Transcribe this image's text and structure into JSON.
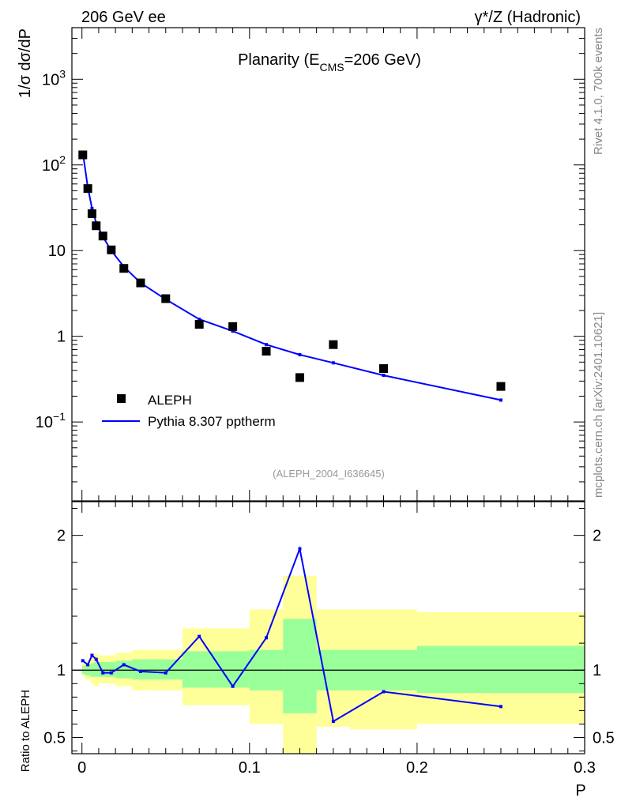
{
  "header": {
    "left": "206 GeV ee",
    "right": "γ*/Z (Hadronic)"
  },
  "side_labels": {
    "rivet": "Rivet 4.1.0,  700k events",
    "mcplots": "mcplots.cern.ch [arXiv:2401.10621]"
  },
  "colors": {
    "data": "#000000",
    "mc": "#0000ff",
    "band_inner": "#99ff99",
    "band_outer": "#ffff99",
    "frame": "#000000"
  },
  "chart_data": [
    {
      "type": "scatter",
      "title": "Planarity (E",
      "title_sub": "CMS",
      "title_end": "=206 GeV)",
      "ylabel": "1/σ  dσ/dP",
      "yscale": "log",
      "ylim": [
        0.012,
        4000
      ],
      "xlim": [
        -0.006,
        0.3
      ],
      "ytick_main": [
        "1",
        "10"
      ],
      "ytick_pow": [
        {
          "base": "10",
          "exp": "−1"
        },
        {
          "base": "10",
          "exp": "2"
        },
        {
          "base": "10",
          "exp": "3"
        }
      ],
      "analysis": "(ALEPH_2004_I636645)",
      "legend_position": "bottom-left",
      "series": [
        {
          "name": "ALEPH",
          "kind": "points",
          "x": [
            0.0005,
            0.0035,
            0.006,
            0.0085,
            0.0125,
            0.0175,
            0.025,
            0.035,
            0.05,
            0.07,
            0.09,
            0.11,
            0.13,
            0.15,
            0.18,
            0.25
          ],
          "y": [
            131,
            53,
            27,
            19.5,
            14.8,
            10.2,
            6.2,
            4.2,
            2.75,
            1.38,
            1.3,
            0.67,
            0.33,
            0.8,
            0.42,
            0.26
          ]
        },
        {
          "name": "Pythia 8.307 pptherm",
          "kind": "line",
          "x": [
            0.0005,
            0.0035,
            0.006,
            0.0085,
            0.0125,
            0.0175,
            0.025,
            0.035,
            0.05,
            0.07,
            0.09,
            0.11,
            0.13,
            0.15,
            0.18,
            0.25
          ],
          "y": [
            140,
            55,
            31,
            21,
            14.5,
            10,
            6.5,
            4.2,
            2.7,
            1.58,
            1.15,
            0.8,
            0.61,
            0.49,
            0.35,
            0.18
          ]
        }
      ]
    },
    {
      "type": "line",
      "ylabel": "Ratio to ALEPH",
      "xlabel": "P",
      "ylim": [
        0.38,
        2.25
      ],
      "xlim": [
        -0.006,
        0.3
      ],
      "yticks": [
        "0.5",
        "1",
        "2"
      ],
      "xticks": [
        "0",
        "0.1",
        "0.2",
        "0.3"
      ],
      "reference": 1,
      "ratio": {
        "x": [
          0.0005,
          0.0035,
          0.006,
          0.0085,
          0.0125,
          0.0175,
          0.025,
          0.035,
          0.05,
          0.07,
          0.09,
          0.11,
          0.13,
          0.15,
          0.18,
          0.25
        ],
        "y": [
          1.07,
          1.04,
          1.11,
          1.08,
          0.98,
          0.98,
          1.04,
          0.99,
          0.98,
          1.25,
          0.88,
          1.24,
          1.9,
          0.62,
          0.84,
          0.73
        ]
      },
      "bands": {
        "bins": [
          [
            0,
            0.002
          ],
          [
            0.002,
            0.005
          ],
          [
            0.005,
            0.007
          ],
          [
            0.007,
            0.01
          ],
          [
            0.01,
            0.015
          ],
          [
            0.015,
            0.02
          ],
          [
            0.02,
            0.03
          ],
          [
            0.03,
            0.04
          ],
          [
            0.04,
            0.06
          ],
          [
            0.06,
            0.08
          ],
          [
            0.08,
            0.1
          ],
          [
            0.1,
            0.12
          ],
          [
            0.12,
            0.14
          ],
          [
            0.14,
            0.16
          ],
          [
            0.16,
            0.2
          ],
          [
            0.2,
            0.3
          ]
        ],
        "inner_low": [
          0.97,
          0.96,
          0.95,
          0.95,
          0.95,
          0.95,
          0.94,
          0.93,
          0.93,
          0.87,
          0.87,
          0.85,
          0.68,
          0.85,
          0.85,
          0.83
        ],
        "inner_high": [
          1.03,
          1.04,
          1.05,
          1.06,
          1.06,
          1.06,
          1.07,
          1.08,
          1.08,
          1.14,
          1.14,
          1.15,
          1.38,
          1.15,
          1.15,
          1.18
        ],
        "outer_low": [
          0.95,
          0.93,
          0.9,
          0.88,
          0.9,
          0.9,
          0.88,
          0.85,
          0.85,
          0.74,
          0.74,
          0.6,
          0.3,
          0.58,
          0.56,
          0.6
        ],
        "outer_high": [
          1.05,
          1.07,
          1.1,
          1.12,
          1.11,
          1.11,
          1.13,
          1.15,
          1.15,
          1.31,
          1.31,
          1.45,
          1.7,
          1.45,
          1.45,
          1.43
        ]
      }
    }
  ]
}
